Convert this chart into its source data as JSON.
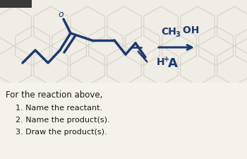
{
  "bg_color": "#f0ede6",
  "header_color": "#3a3a3a",
  "text_color": "#1a1a1a",
  "molecule_color": "#1c3a6e",
  "hex_color": "#d4cfc6",
  "question_text": "For the reaction above,",
  "questions": [
    "1. Name the reactant.",
    "2. Name the product(s).",
    "3. Draw the product(s)."
  ],
  "fig_width": 3.5,
  "fig_height": 2.26,
  "dpi": 100
}
